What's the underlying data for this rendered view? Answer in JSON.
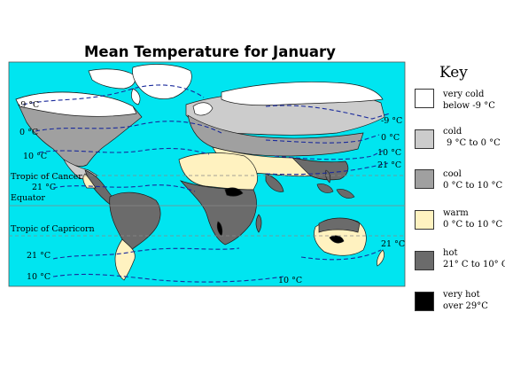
{
  "title": "Mean Temperature for January",
  "key": {
    "title": "Key",
    "items": [
      {
        "name": "very cold",
        "range": "below -9 °C",
        "color": "#ffffff"
      },
      {
        "name": "cold",
        "range": "9 °C to 0 °C",
        "color": "#cccccc"
      },
      {
        "name": "cool",
        "range": "0 °C to 10 °C",
        "color": "#a0a0a0"
      },
      {
        "name": "warm",
        "range": "0 °C to 10 °C",
        "color": "#fff2c0"
      },
      {
        "name": "hot",
        "range": "21° C to 10° C",
        "color": "#6b6b6b"
      },
      {
        "name": "very hot",
        "range": "over 29°C",
        "color": "#000000"
      }
    ]
  },
  "lines": {
    "tropic_cancer": "Tropic of Cancer",
    "equator": "Equator",
    "tropic_capricorn": "Tropic of Capricorn"
  },
  "isotherms": {
    "w_minus9": "-9 °C",
    "w_0": "0 °C",
    "w_10": "10 °C",
    "w_21": "21 °C",
    "e_minus9": "-9 °C",
    "e_0": "0 °C",
    "e_10": "10 °C",
    "e_21": "21 °C",
    "s_21_w": "21 °C",
    "s_10_w": "10 °C",
    "s_10_c": "10 °C",
    "s_21_e": "21 °C"
  },
  "colors": {
    "ocean": "#00e5f0",
    "isotherm": "#1a2a9c",
    "outline": "#1a1a1a"
  }
}
